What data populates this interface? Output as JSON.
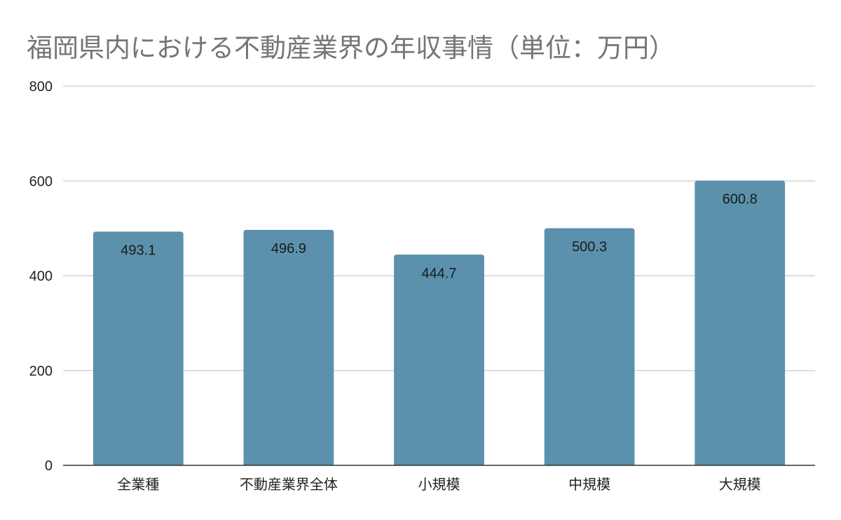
{
  "chart_data": {
    "type": "bar",
    "title": "福岡県内における不動産業界の年収事情（単位：万円）",
    "xlabel": "",
    "ylabel": "",
    "categories": [
      "全業種",
      "不動産業界全体",
      "小規模",
      "中規模",
      "大規模"
    ],
    "series": [
      {
        "values": [
          493.1,
          496.9,
          444.7,
          500.3,
          600.8
        ],
        "color": "#5b91ad"
      }
    ],
    "data_labels": [
      "493.1",
      "496.9",
      "444.7",
      "500.3",
      "600.8"
    ],
    "ylim": [
      0,
      800
    ],
    "yticks": [
      0,
      200,
      400,
      600,
      800
    ],
    "ytick_labels": [
      "0",
      "200",
      "400",
      "600",
      "800"
    ],
    "grid": true,
    "legend": "none",
    "colors": {
      "bar": "#5b91ad",
      "grid": "#cccccc",
      "axis": "#333333",
      "title": "#757575"
    }
  }
}
